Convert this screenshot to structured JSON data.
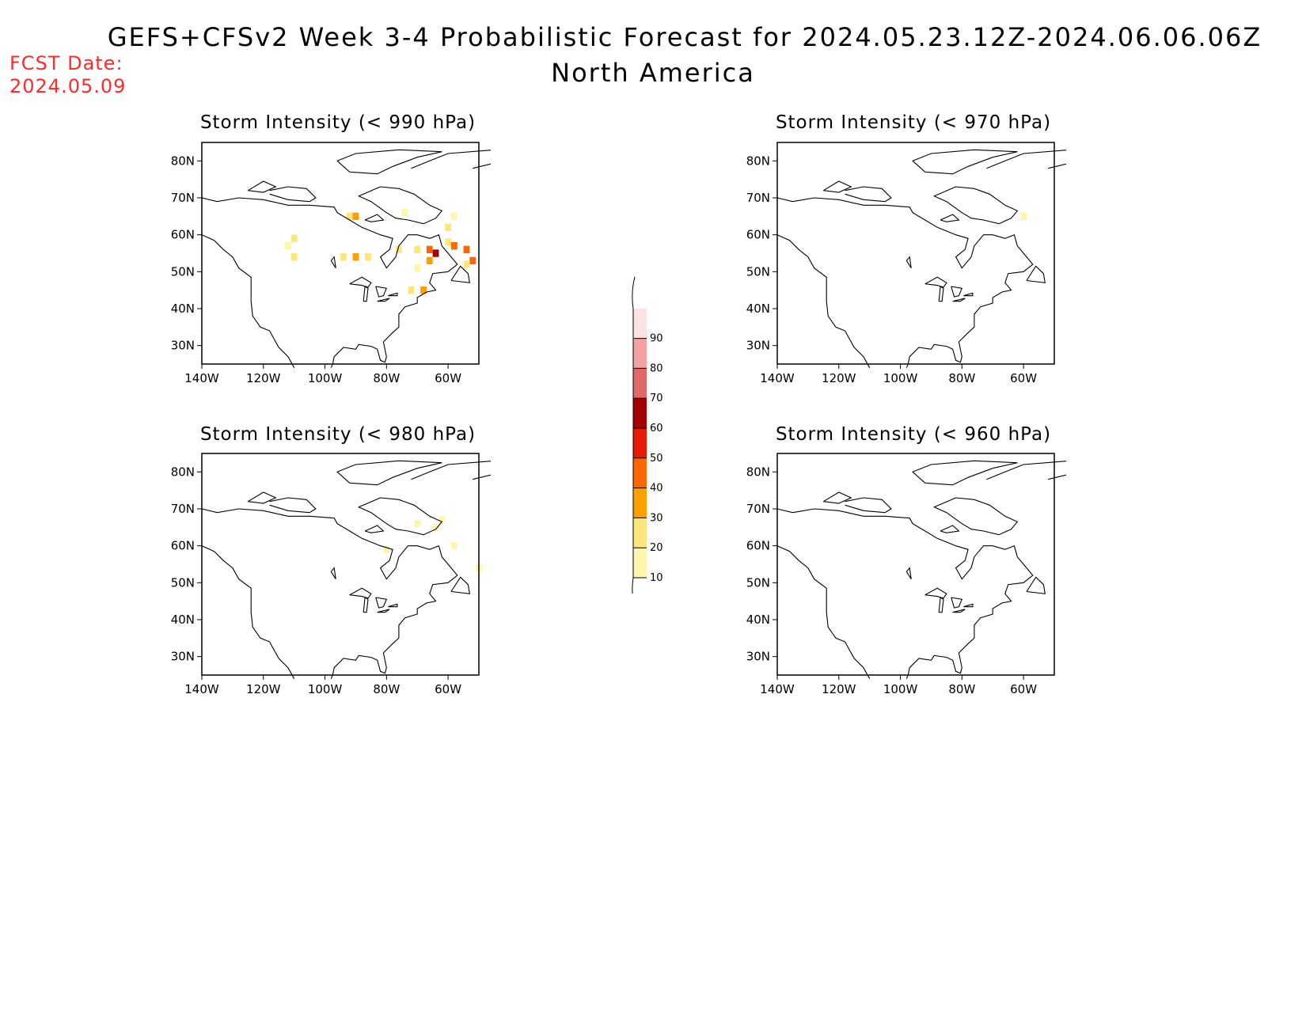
{
  "header": {
    "title": "GEFS+CFSv2 Week 3-4 Probabilistic Forecast for 2024.05.23.12Z-2024.06.06.06Z",
    "subtitle": "North America",
    "fcst_label": "FCST Date:",
    "fcst_value": "2024.05.09",
    "fcst_color": "#ff2a2a"
  },
  "axes": {
    "lon_labels": [
      "140W",
      "120W",
      "100W",
      "80W",
      "60W"
    ],
    "lat_labels": [
      "80N",
      "70N",
      "60N",
      "50N",
      "40N",
      "30N"
    ],
    "lon_values": [
      -140,
      -120,
      -100,
      -80,
      -60
    ],
    "lat_values": [
      80,
      70,
      60,
      50,
      40,
      30
    ],
    "lon_range": [
      -140,
      -50
    ],
    "lat_range": [
      25,
      85
    ]
  },
  "panels": [
    {
      "title": "Storm Intensity (< 990 hPa)",
      "cells": [
        {
          "lon": -92,
          "lat": 65,
          "p": 25
        },
        {
          "lon": -90,
          "lat": 65,
          "p": 35
        },
        {
          "lon": -74,
          "lat": 66,
          "p": 15
        },
        {
          "lon": -110,
          "lat": 59,
          "p": 20
        },
        {
          "lon": -112,
          "lat": 57,
          "p": 15
        },
        {
          "lon": -110,
          "lat": 54,
          "p": 20
        },
        {
          "lon": -94,
          "lat": 54,
          "p": 25
        },
        {
          "lon": -90,
          "lat": 54,
          "p": 30
        },
        {
          "lon": -86,
          "lat": 54,
          "p": 20
        },
        {
          "lon": -76,
          "lat": 56,
          "p": 20
        },
        {
          "lon": -70,
          "lat": 56,
          "p": 25
        },
        {
          "lon": -66,
          "lat": 56,
          "p": 40
        },
        {
          "lon": -64,
          "lat": 55,
          "p": 65
        },
        {
          "lon": -66,
          "lat": 53,
          "p": 30
        },
        {
          "lon": -58,
          "lat": 57,
          "p": 45
        },
        {
          "lon": -60,
          "lat": 58,
          "p": 25
        },
        {
          "lon": -60,
          "lat": 62,
          "p": 20
        },
        {
          "lon": -58,
          "lat": 65,
          "p": 15
        },
        {
          "lon": -54,
          "lat": 56,
          "p": 40
        },
        {
          "lon": -52,
          "lat": 53,
          "p": 45
        },
        {
          "lon": -54,
          "lat": 52,
          "p": 25
        },
        {
          "lon": -70,
          "lat": 51,
          "p": 15
        },
        {
          "lon": -68,
          "lat": 45,
          "p": 35
        },
        {
          "lon": -72,
          "lat": 45,
          "p": 20
        }
      ]
    },
    {
      "title": "Storm Intensity (< 970 hPa)",
      "cells": [
        {
          "lon": -60,
          "lat": 65,
          "p": 12
        }
      ]
    },
    {
      "title": "Storm Intensity (< 980 hPa)",
      "cells": [
        {
          "lon": -70,
          "lat": 66,
          "p": 12
        },
        {
          "lon": -62,
          "lat": 67,
          "p": 12
        },
        {
          "lon": -64,
          "lat": 65,
          "p": 12
        },
        {
          "lon": -58,
          "lat": 60,
          "p": 15
        },
        {
          "lon": -50,
          "lat": 54,
          "p": 12
        },
        {
          "lon": -80,
          "lat": 59,
          "p": 12
        }
      ]
    },
    {
      "title": "Storm Intensity (< 960 hPa)",
      "cells": []
    }
  ],
  "legend": {
    "levels": [
      "10",
      "20",
      "30",
      "40",
      "50",
      "60",
      "70",
      "80",
      "90"
    ],
    "colors": [
      "#fff6ae",
      "#ffe57a",
      "#ffa000",
      "#ff6600",
      "#e61b00",
      "#a50000",
      "#e06868",
      "#f2a2a2",
      "#fde2e2"
    ]
  }
}
